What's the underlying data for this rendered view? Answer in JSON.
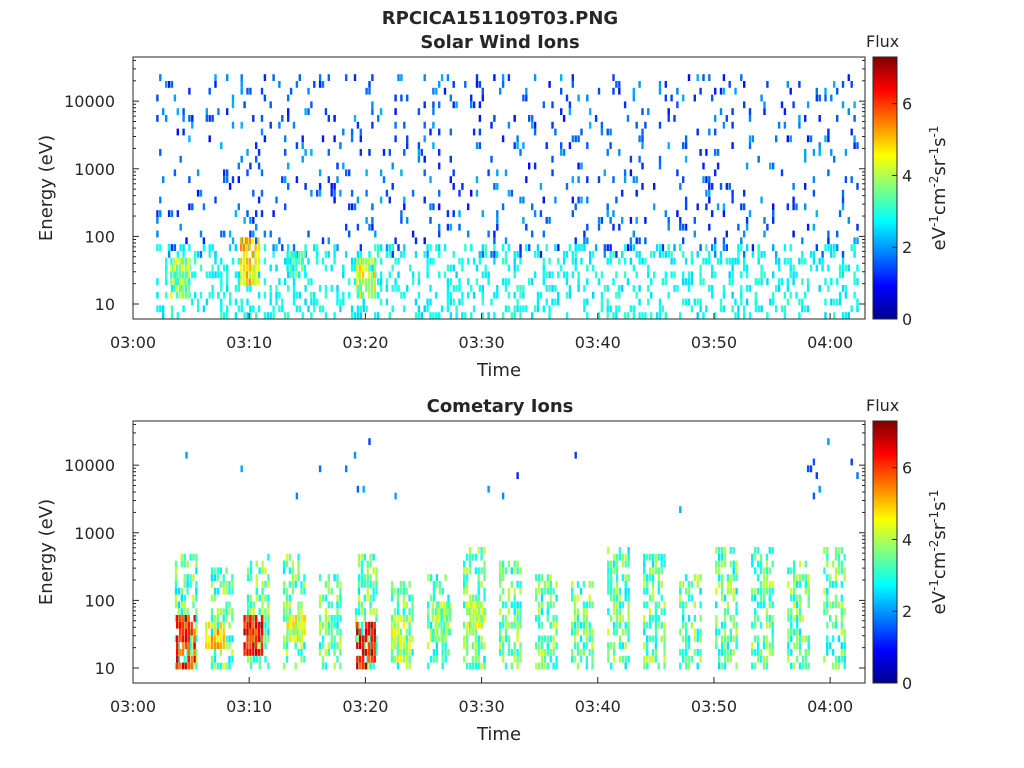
{
  "figure_title": "RPCICA151109T03.PNG",
  "chart_data": [
    {
      "type": "heatmap",
      "title": "Solar Wind Ions",
      "xlabel": "Time",
      "ylabel": "Energy (eV)",
      "xlim": [
        "03:00",
        "04:03"
      ],
      "xticks": [
        "03:00",
        "03:10",
        "03:20",
        "03:30",
        "03:40",
        "03:50",
        "04:00"
      ],
      "ylim": [
        6,
        45000
      ],
      "yscale": "log",
      "yticks": [
        "10",
        "100",
        "1000",
        "10000"
      ],
      "colorbar": {
        "title": "Flux",
        "label": "eV-1cm-2sr-1s-1",
        "label_display": [
          "eV",
          "-1",
          "cm",
          "-2",
          "sr",
          "-1",
          "s",
          "-1"
        ],
        "range": [
          0,
          7.3
        ],
        "ticks": [
          "0",
          "2",
          "4",
          "6"
        ],
        "colormap": "jet"
      },
      "features": [
        {
          "desc": "sparse low flux (~1-2) scattered from 50 eV to 30000 eV, whole interval"
        },
        {
          "desc": "flux ~2-3 band 10-80 eV, whole interval"
        },
        {
          "time": "03:04",
          "energy_eV": [
            15,
            40
          ],
          "flux": 4.5
        },
        {
          "time": "03:10",
          "energy_eV": [
            20,
            80
          ],
          "flux": 5.5
        },
        {
          "time": "03:14",
          "energy_eV": [
            25,
            60
          ],
          "flux": 4.0
        },
        {
          "time": "03:20",
          "energy_eV": [
            15,
            45
          ],
          "flux": 5.0
        }
      ]
    },
    {
      "type": "heatmap",
      "title": "Cometary Ions",
      "xlabel": "Time",
      "ylabel": "Energy (eV)",
      "xlim": [
        "03:00",
        "04:03"
      ],
      "xticks": [
        "03:00",
        "03:10",
        "03:20",
        "03:30",
        "03:40",
        "03:50",
        "04:00"
      ],
      "ylim": [
        6,
        45000
      ],
      "yscale": "log",
      "yticks": [
        "10",
        "100",
        "1000",
        "10000"
      ],
      "colorbar": {
        "title": "Flux",
        "label": "eV-1cm-2sr-1s-1",
        "label_display": [
          "eV",
          "-1",
          "cm",
          "-2",
          "sr",
          "-1",
          "s",
          "-1"
        ],
        "range": [
          0,
          7.3
        ],
        "ticks": [
          "0",
          "2",
          "4",
          "6"
        ],
        "colormap": "jet"
      },
      "features": [
        {
          "desc": "periodic ion bursts every ~3 min, 10-800 eV"
        },
        {
          "time": "03:04.5",
          "energy_eV": [
            12,
            50
          ],
          "flux": 6.8
        },
        {
          "time": "03:07",
          "energy_eV": [
            20,
            45
          ],
          "flux": 5.5
        },
        {
          "time": "03:10.3",
          "energy_eV": [
            18,
            60
          ],
          "flux": 7.0
        },
        {
          "time": "03:14",
          "energy_eV": [
            30,
            60
          ],
          "flux": 5.0
        },
        {
          "time": "03:20",
          "energy_eV": [
            12,
            45
          ],
          "flux": 7.0
        },
        {
          "time": "03:23",
          "energy_eV": [
            15,
            50
          ],
          "flux": 4.8
        },
        {
          "time": "03:26.5",
          "energy_eV": [
            30,
            90
          ],
          "flux": 4.5
        },
        {
          "time": "03:29.5",
          "energy_eV": [
            40,
            80
          ],
          "flux": 4.8
        }
      ]
    }
  ]
}
